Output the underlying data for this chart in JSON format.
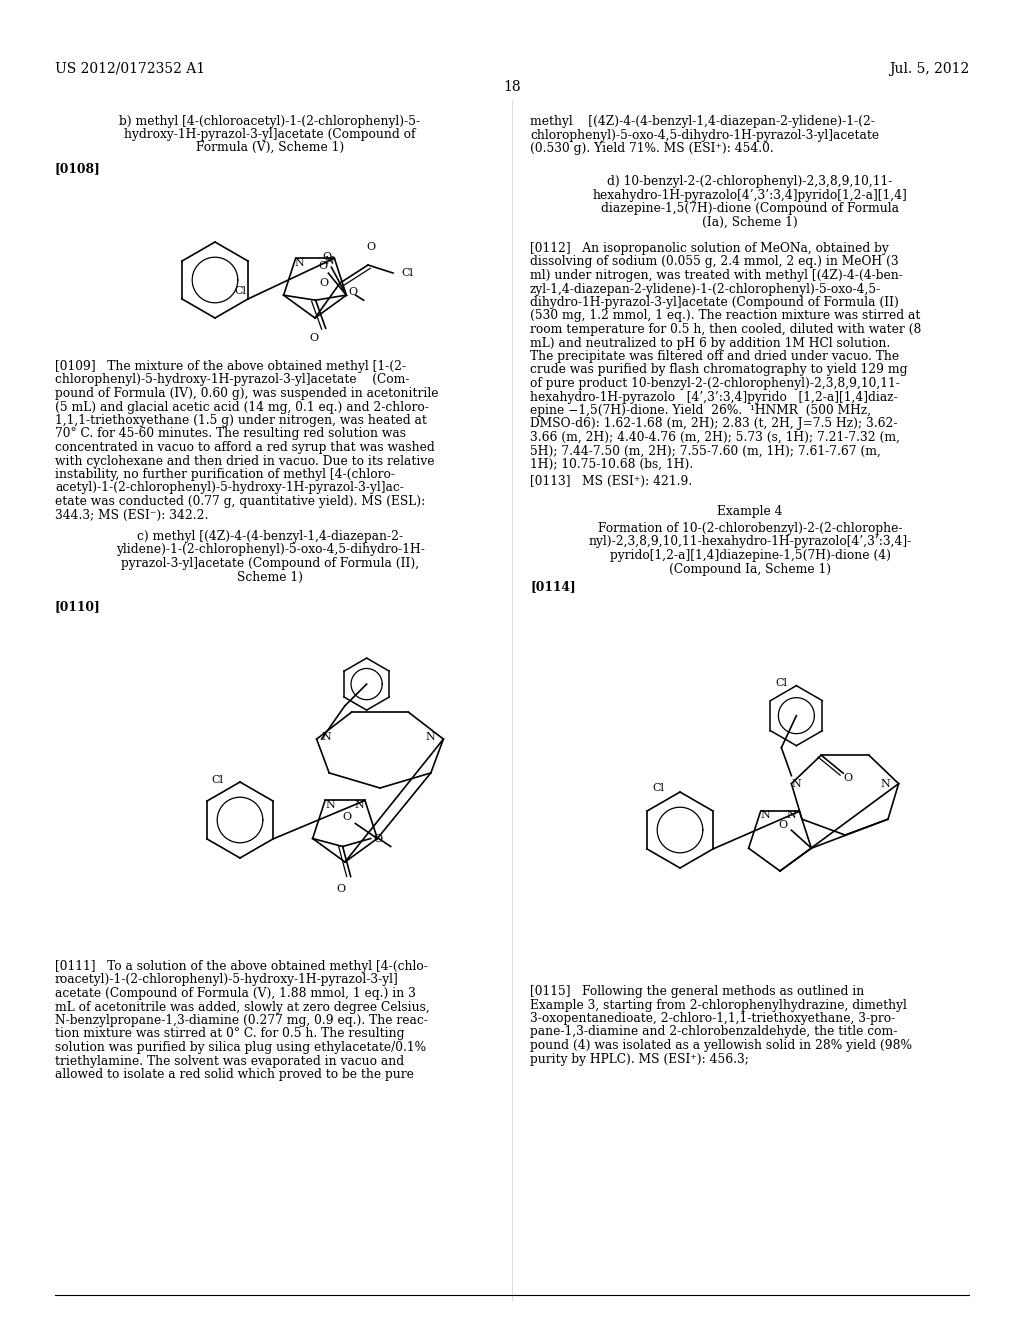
{
  "background_color": "#ffffff",
  "header_left": "US 2012/0172352 A1",
  "header_right": "Jul. 5, 2012",
  "page_number": "18",
  "lc_title_b": "b) methyl [4-(chloroacetyl)-1-(2-chlorophenyl)-5-\n     hydroxy-1H-pyrazol-3-yl]acetate (Compound of\n               Formula (V), Scheme 1)",
  "lc_0108": "[0108]",
  "lc_0109_lines": [
    "[0109]   The mixture of the above obtained methyl [1-(2-",
    "chlorophenyl)-5-hydroxy-1H-pyrazol-3-yl]acetate    (Com-",
    "pound of Formula (IV), 0.60 g), was suspended in acetonitrile",
    "(5 mL) and glacial acetic acid (14 mg, 0.1 eq.) and 2-chloro-",
    "1,1,1-triethoxyethane (1.5 g) under nitrogen, was heated at",
    "70° C. for 45-60 minutes. The resulting red solution was",
    "concentrated in vacuo to afford a red syrup that was washed",
    "with cyclohexane and then dried in vacuo. Due to its relative",
    "instability, no further purification of methyl [4-(chloro-",
    "acetyl)-1-(2-chlorophenyl)-5-hydroxy-1H-pyrazol-3-yl]ac-",
    "etate was conducted (0.77 g, quantitative yield). MS (ESL):",
    "344.3; MS (ESI⁻): 342.2."
  ],
  "lc_title_c": "     c) methyl [(4Z)-4-(4-benzyl-1,4-diazepan-2-\n  ylidene)-1-(2-chlorophenyl)-5-oxo-4,5-dihydro-1H-\n  pyrazol-3-yl]acetate (Compound of Formula (II),\n                       Scheme 1)",
  "lc_0110": "[0110]",
  "lc_0111_lines": [
    "[0111]   To a solution of the above obtained methyl [4-(chlo-",
    "roacetyl)-1-(2-chlorophenyl)-5-hydroxy-1H-pyrazol-3-yl]",
    "acetate (Compound of Formula (V), 1.88 mmol, 1 eq.) in 3",
    "mL of acetonitrile was added, slowly at zero degree Celsius,",
    "N-benzylpropane-1,3-diamine (0.277 mg, 0.9 eq.). The reac-",
    "tion mixture was stirred at 0° C. for 0.5 h. The resulting",
    "solution was purified by silica plug using ethylacetate/0.1%",
    "triethylamine. The solvent was evaporated in vacuo and",
    "allowed to isolate a red solid which proved to be the pure"
  ],
  "rc_title_c_lines": [
    "methyl    [(4Z)-4-(4-benzyl-1,4-diazepan-2-ylidene)-1-(2-",
    "chlorophenyl)-5-oxo-4,5-dihydro-1H-pyrazol-3-yl]acetate",
    "(0.530 g). Yield 71%. MS (ESI⁺): 454.0."
  ],
  "rc_title_d": "     d) 10-benzyl-2-(2-chlorophenyl)-2,3,8,9,10,11-\nhexahydro-1H-pyrazolo[4’,3’:3,4]pyrido[1,2-a][1,4]\n  diazepine-1,5(7H)-dione (Compound of Formula\n                  (Ia), Scheme 1)",
  "rc_0112_lines": [
    "[0112]   An isopropanolic solution of MeONa, obtained by",
    "dissolving of sodium (0.055 g, 2.4 mmol, 2 eq.) in MeOH (3",
    "ml) under nitrogen, was treated with methyl [(4Z)-4-(4-ben-",
    "zyl-1,4-diazepan-2-ylidene)-1-(2-chlorophenyl)-5-oxo-4,5-",
    "dihydro-1H-pyrazol-3-yl]acetate (Compound of Formula (II)",
    "(530 mg, 1.2 mmol, 1 eq.). The reaction mixture was stirred at",
    "room temperature for 0.5 h, then cooled, diluted with water (8",
    "mL) and neutralized to pH 6 by addition 1M HCl solution.",
    "The precipitate was filtered off and dried under vacuo. The",
    "crude was purified by flash chromatography to yield 129 mg",
    "of pure product 10-benzyl-2-(2-chlorophenyl)-2,3,8,9,10,11-",
    "hexahydro-1H-pyrazolo   [4’,3’:3,4]pyrido   [1,2-a][1,4]diaz-",
    "epine −1,5(7H)-dione. Yield  26%.  ¹HNMR  (500 MHz,",
    "DMSO-d6): 1.62-1.68 (m, 2H); 2.83 (t, 2H, J=7.5 Hz); 3.62-",
    "3.66 (m, 2H); 4.40-4.76 (m, 2H); 5.73 (s, 1H); 7.21-7.32 (m,",
    "5H); 7.44-7.50 (m, 2H); 7.55-7.60 (m, 1H); 7.61-7.67 (m,",
    "1H); 10.75-10.68 (bs, 1H)."
  ],
  "rc_0113": "[0113]   MS (ESI⁺): 421.9.",
  "rc_ex4_title": "Example 4",
  "rc_ex4_subtitle_lines": [
    "Formation of 10-(2-chlorobenzyl)-2-(2-chlorophe-",
    "nyl)-2,3,8,9,10,11-hexahydro-1H-pyrazolo[4’,3’:3,4]-",
    "pyrido[1,2-a][1,4]diazepine-1,5(7H)-dione (4)",
    "(Compound Ia, Scheme 1)"
  ],
  "rc_0114": "[0114]",
  "rc_0115_lines": [
    "[0115]   Following the general methods as outlined in",
    "Example 3, starting from 2-chlorophenylhydrazine, dimethyl",
    "3-oxopentanedioate, 2-chloro-1,1,1-triethoxyethane, 3-pro-",
    "pane-1,3-diamine and 2-chlorobenzaldehyde, the title com-",
    "pound (4) was isolated as a yellowish solid in 28% yield (98%",
    "purity by HPLC). MS (ESI⁺): 456.3;"
  ]
}
